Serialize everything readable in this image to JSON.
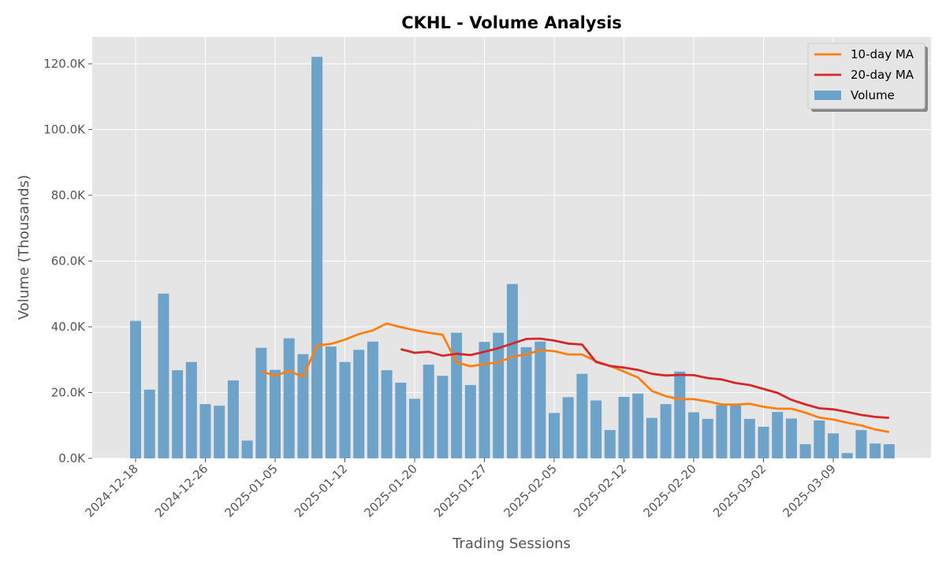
{
  "chart_data": {
    "type": "bar",
    "title": "CKHL - Volume Analysis",
    "xlabel": "Trading Sessions",
    "ylabel": "Volume (Thousands)",
    "ylim": [
      0,
      128
    ],
    "y_ticks": [
      0,
      20,
      40,
      60,
      80,
      100,
      120
    ],
    "y_tick_labels": [
      "0.0K",
      "20.0K",
      "40.0K",
      "60.0K",
      "80.0K",
      "100.0K",
      "120.0K"
    ],
    "x_tick_labels": [
      {
        "index": 0,
        "label": "2024-12-18"
      },
      {
        "index": 5,
        "label": "2024-12-26"
      },
      {
        "index": 10,
        "label": "2025-01-05"
      },
      {
        "index": 15,
        "label": "2025-01-12"
      },
      {
        "index": 20,
        "label": "2025-01-20"
      },
      {
        "index": 25,
        "label": "2025-01-27"
      },
      {
        "index": 30,
        "label": "2025-02-05"
      },
      {
        "index": 35,
        "label": "2025-02-12"
      },
      {
        "index": 40,
        "label": "2025-02-20"
      },
      {
        "index": 45,
        "label": "2025-03-02"
      },
      {
        "index": 50,
        "label": "2025-03-09"
      }
    ],
    "grid": true,
    "legend_position": "top-right",
    "series": [
      {
        "name": "Volume",
        "kind": "bar",
        "color": "#6ea3c9",
        "values": [
          41.8,
          20.9,
          50.1,
          26.8,
          29.3,
          16.5,
          16.0,
          23.7,
          5.4,
          33.6,
          26.9,
          36.5,
          31.7,
          122.1,
          34.0,
          29.3,
          33.0,
          35.5,
          26.8,
          23.0,
          18.1,
          28.5,
          25.1,
          38.2,
          22.3,
          35.4,
          38.2,
          53.0,
          33.8,
          35.5,
          13.8,
          18.6,
          25.7,
          17.6,
          8.6,
          18.7,
          19.7,
          12.3,
          16.5,
          26.4,
          14.0,
          12.0,
          16.2,
          16.3,
          12.0,
          9.6,
          14.1,
          12.1,
          4.3,
          11.5,
          7.6,
          1.6,
          8.6,
          4.5,
          4.3
        ]
      },
      {
        "name": "10-day MA",
        "kind": "line",
        "color": "#ff7f0e",
        "values": [
          null,
          null,
          null,
          null,
          null,
          null,
          null,
          null,
          null,
          26.5,
          25.1,
          26.6,
          24.8,
          34.3,
          34.8,
          36.1,
          37.8,
          38.9,
          41.0,
          39.9,
          39.0,
          38.2,
          37.6,
          29.2,
          28.0,
          28.7,
          29.2,
          30.9,
          31.6,
          32.9,
          32.6,
          31.6,
          31.6,
          29.5,
          28.1,
          26.4,
          24.6,
          20.5,
          18.9,
          18.0,
          18.0,
          17.3,
          16.4,
          16.3,
          16.6,
          15.7,
          15.1,
          15.1,
          13.9,
          12.4,
          11.8,
          10.8,
          10.0,
          8.8,
          8.0
        ]
      },
      {
        "name": "20-day MA",
        "kind": "line",
        "color": "#d62728",
        "values": [
          null,
          null,
          null,
          null,
          null,
          null,
          null,
          null,
          null,
          null,
          null,
          null,
          null,
          null,
          null,
          null,
          null,
          null,
          null,
          33.2,
          32.1,
          32.4,
          31.2,
          31.8,
          31.4,
          32.4,
          33.5,
          34.9,
          36.3,
          36.4,
          35.8,
          34.9,
          34.6,
          29.3,
          28.1,
          27.6,
          26.9,
          25.7,
          25.2,
          25.4,
          25.3,
          24.4,
          24.0,
          22.9,
          22.3,
          21.1,
          19.9,
          17.8,
          16.4,
          15.2,
          14.9,
          14.1,
          13.2,
          12.6,
          12.3
        ]
      }
    ]
  }
}
